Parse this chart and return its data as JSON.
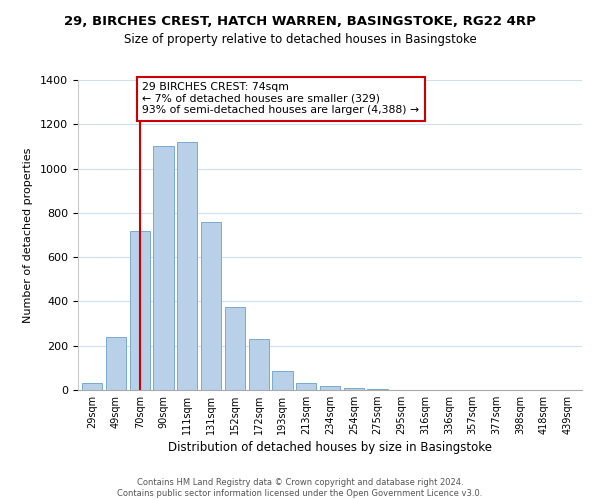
{
  "title_line1": "29, BIRCHES CREST, HATCH WARREN, BASINGSTOKE, RG22 4RP",
  "title_line2": "Size of property relative to detached houses in Basingstoke",
  "xlabel": "Distribution of detached houses by size in Basingstoke",
  "ylabel": "Number of detached properties",
  "bar_labels": [
    "29sqm",
    "49sqm",
    "70sqm",
    "90sqm",
    "111sqm",
    "131sqm",
    "152sqm",
    "172sqm",
    "193sqm",
    "213sqm",
    "234sqm",
    "254sqm",
    "275sqm",
    "295sqm",
    "316sqm",
    "336sqm",
    "357sqm",
    "377sqm",
    "398sqm",
    "418sqm",
    "439sqm"
  ],
  "bar_heights": [
    30,
    240,
    720,
    1100,
    1120,
    760,
    375,
    230,
    88,
    30,
    20,
    10,
    5,
    2,
    0,
    0,
    0,
    0,
    0,
    0,
    0
  ],
  "bar_color": "#b8d0e8",
  "bar_edge_color": "#7aaacf",
  "vline_x": 2,
  "vline_color": "#cc0000",
  "annotation_text": "29 BIRCHES CREST: 74sqm\n← 7% of detached houses are smaller (329)\n93% of semi-detached houses are larger (4,388) →",
  "annotation_box_color": "#ffffff",
  "annotation_box_edge_color": "#cc0000",
  "ylim": [
    0,
    1400
  ],
  "yticks": [
    0,
    200,
    400,
    600,
    800,
    1000,
    1200,
    1400
  ],
  "footnote_line1": "Contains HM Land Registry data © Crown copyright and database right 2024.",
  "footnote_line2": "Contains public sector information licensed under the Open Government Licence v3.0.",
  "background_color": "#ffffff",
  "grid_color": "#d0dff0"
}
